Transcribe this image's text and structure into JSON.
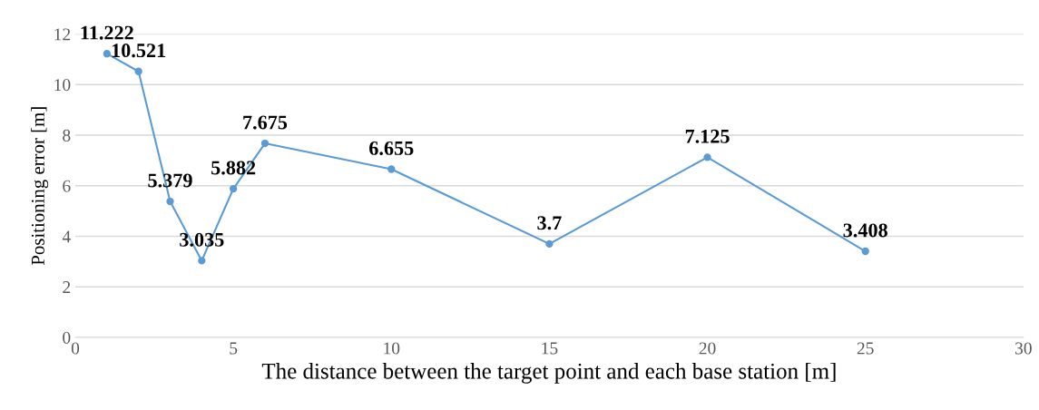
{
  "chart_data": {
    "type": "line",
    "xlabel": "The distance between the target point and each base station [m]",
    "ylabel": "Positioning error [m]",
    "x": [
      1,
      2,
      3,
      4,
      5,
      6,
      10,
      15,
      20,
      25
    ],
    "series": [
      {
        "color": "#5b9bd5",
        "values": [
          11.222,
          10.521,
          5.379,
          3.035,
          5.882,
          7.675,
          6.655,
          3.7,
          7.125,
          3.408
        ]
      }
    ],
    "xlim": [
      0,
      30
    ],
    "xticks": [
      0,
      5,
      10,
      15,
      20,
      25,
      30
    ],
    "ylim": [
      0,
      12
    ],
    "yticks": [
      0,
      2,
      4,
      6,
      8,
      10,
      12
    ],
    "grid": "y",
    "marker": "circle",
    "line_style": "solid",
    "data_labels": true
  }
}
